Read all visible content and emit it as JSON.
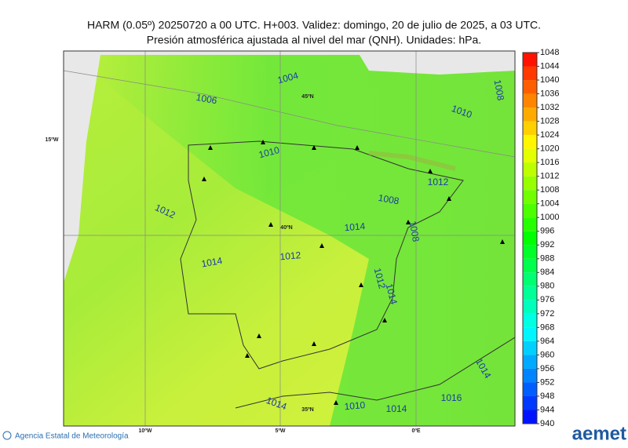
{
  "header": {
    "title": "HARM (0.05º) 20250720 a 00 UTC. H+003. Validez: domingo, 20 de julio de 2025, a 03 UTC.",
    "subtitle": "Presión atmosférica ajustada al nivel del mar (QNH). Unidades: hPa."
  },
  "map": {
    "contour_labels": [
      "1004",
      "1006",
      "1010",
      "1012",
      "1014",
      "1012",
      "1014",
      "1008",
      "1008",
      "1012",
      "1010",
      "1008",
      "1012",
      "1014",
      "1014",
      "1010",
      "1014",
      "1016",
      "1014"
    ],
    "grid_labels": [
      "45ºN",
      "40ºN",
      "35ºN",
      "15ºW",
      "10ºW",
      "5ºW",
      "0ºE"
    ]
  },
  "colorbar": {
    "ticks": [
      1048,
      1044,
      1040,
      1036,
      1032,
      1028,
      1024,
      1020,
      1016,
      1012,
      1008,
      1004,
      1000,
      996,
      992,
      988,
      984,
      980,
      976,
      972,
      968,
      964,
      960,
      956,
      952,
      948,
      944,
      940
    ]
  },
  "footer": {
    "agency": "Agencia Estatal de Meteorología",
    "logo": "aemet"
  }
}
